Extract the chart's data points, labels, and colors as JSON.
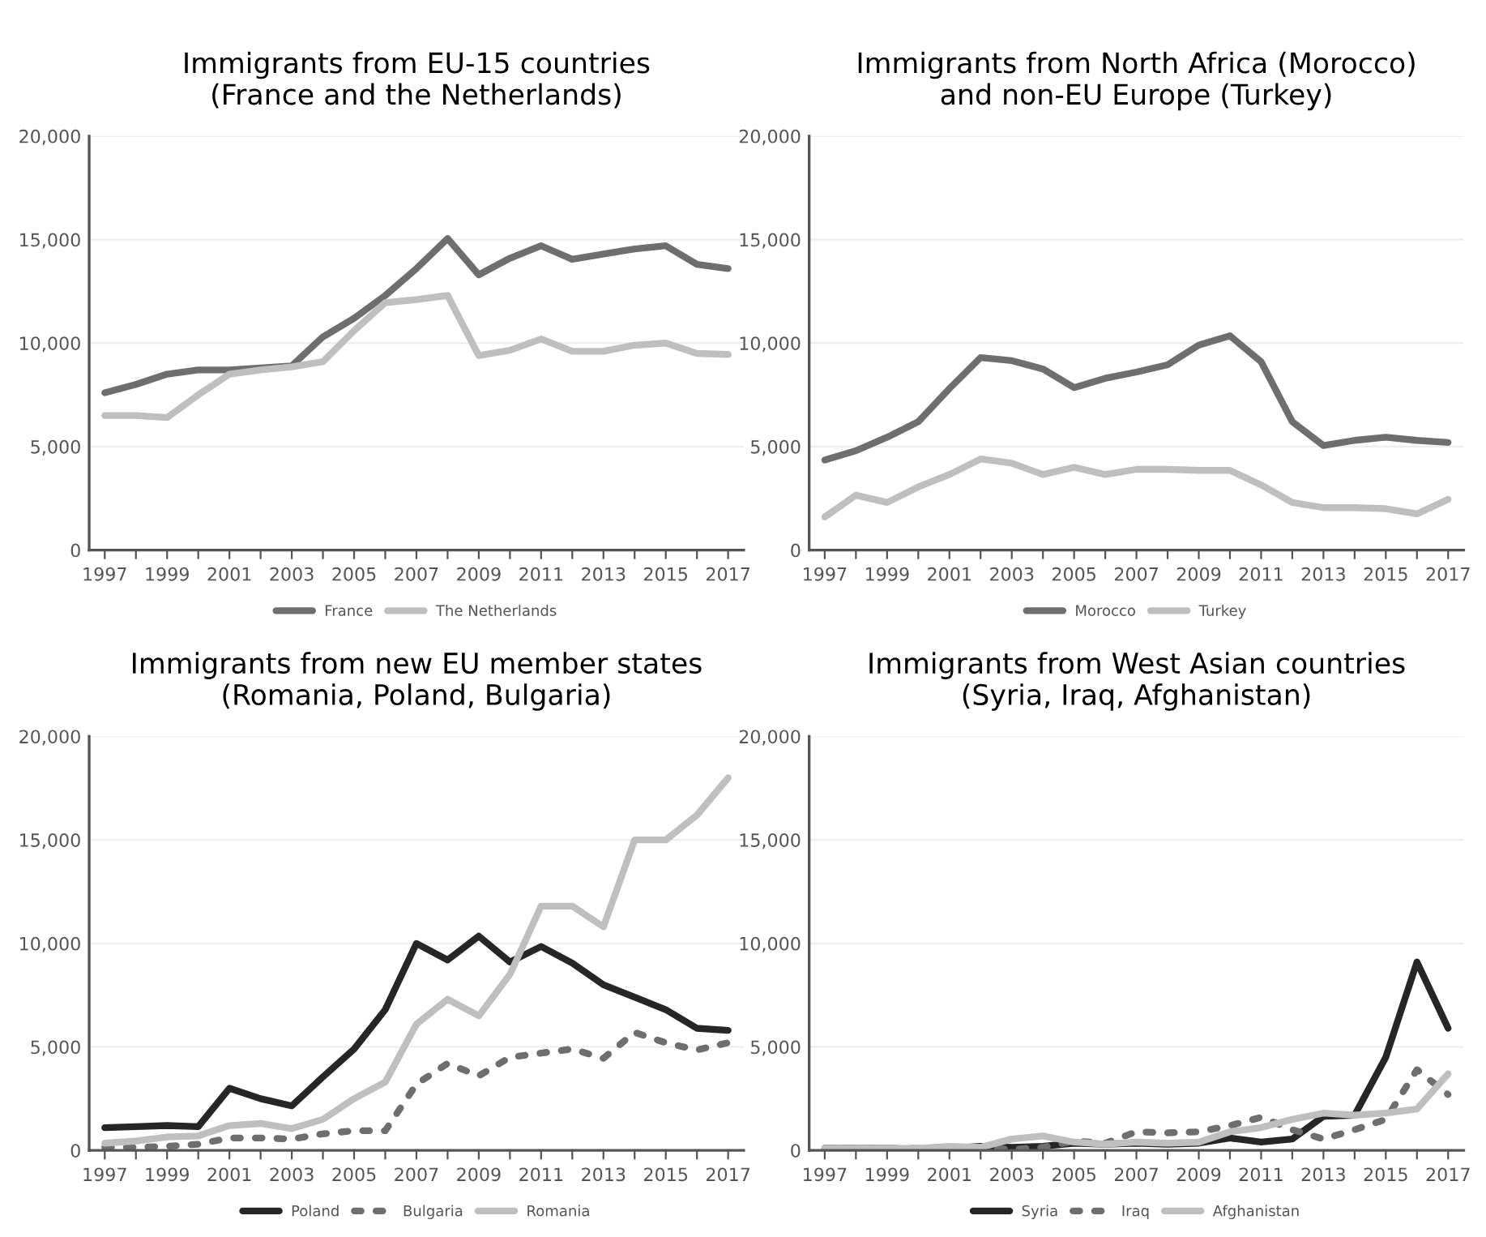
{
  "chart_data": [
    {
      "type": "line",
      "title": "Immigrants from EU-15 countries\n(France and the Netherlands)",
      "categories": [
        "1997",
        null,
        "1999",
        null,
        "2001",
        null,
        "2003",
        null,
        "2005",
        null,
        "2007",
        null,
        "2009",
        null,
        "2011",
        null,
        "2013",
        null,
        "2015",
        null,
        "2017"
      ],
      "ylim": [
        0,
        20000
      ],
      "yticks": [
        {
          "value": 0,
          "label": "0"
        },
        {
          "value": 5000,
          "label": "5,000"
        },
        {
          "value": 10000,
          "label": "10,000"
        },
        {
          "value": 15000,
          "label": "15,000"
        },
        {
          "value": 20000,
          "label": "20,000"
        }
      ],
      "grid": "y",
      "legend": "bottom",
      "line_style": "solid",
      "series": [
        {
          "name": "France",
          "color": "#6e6e6e",
          "values": [
            7600,
            8000,
            8500,
            8700,
            8700,
            8800,
            8900,
            10300,
            11200,
            12300,
            13600,
            15050,
            13300,
            14100,
            14700,
            14050,
            14300,
            14550,
            14700,
            13800,
            13600
          ]
        },
        {
          "name": "The Netherlands",
          "color": "#bfbfbf",
          "values": [
            6500,
            6500,
            6400,
            7500,
            8500,
            8700,
            8850,
            9100,
            10600,
            11950,
            12100,
            12300,
            9400,
            9650,
            10200,
            9600,
            9600,
            9900,
            10000,
            9500,
            9450
          ]
        }
      ]
    },
    {
      "type": "line",
      "title": "Immigrants from North Africa (Morocco)\nand non-EU Europe (Turkey)",
      "categories": [
        "1997",
        null,
        "1999",
        null,
        "2001",
        null,
        "2003",
        null,
        "2005",
        null,
        "2007",
        null,
        "2009",
        null,
        "2011",
        null,
        "2013",
        null,
        "2015",
        null,
        "2017"
      ],
      "ylim": [
        0,
        20000
      ],
      "yticks": [
        {
          "value": 0,
          "label": "0"
        },
        {
          "value": 5000,
          "label": "5,000"
        },
        {
          "value": 10000,
          "label": "10,000"
        },
        {
          "value": 15000,
          "label": "15,000"
        },
        {
          "value": 20000,
          "label": "20,000"
        }
      ],
      "grid": "y",
      "legend": "bottom",
      "line_style": "solid",
      "series": [
        {
          "name": "Morocco",
          "color": "#6e6e6e",
          "values": [
            4350,
            4800,
            5450,
            6200,
            7800,
            9300,
            9150,
            8750,
            7850,
            8300,
            8600,
            8950,
            9900,
            10350,
            9100,
            6200,
            5050,
            5300,
            5450,
            5300,
            5200
          ]
        },
        {
          "name": "Turkey",
          "color": "#bfbfbf",
          "values": [
            1600,
            2650,
            2300,
            3050,
            3650,
            4400,
            4200,
            3650,
            4000,
            3650,
            3900,
            3900,
            3850,
            3850,
            3150,
            2300,
            2050,
            2050,
            2000,
            1750,
            2450
          ]
        }
      ]
    },
    {
      "type": "line",
      "title": "Immigrants from new EU member states\n(Romania, Poland, Bulgaria)",
      "categories": [
        "1997",
        null,
        "1999",
        null,
        "2001",
        null,
        "2003",
        null,
        "2005",
        null,
        "2007",
        null,
        "2009",
        null,
        "2011",
        null,
        "2013",
        null,
        "2015",
        null,
        "2017"
      ],
      "ylim": [
        0,
        20000
      ],
      "yticks": [
        {
          "value": 0,
          "label": "0"
        },
        {
          "value": 5000,
          "label": "5,000"
        },
        {
          "value": 10000,
          "label": "10,000"
        },
        {
          "value": 15000,
          "label": "15,000"
        },
        {
          "value": 20000,
          "label": "20,000"
        }
      ],
      "grid": "y",
      "legend": "bottom",
      "line_style": "solid",
      "series": [
        {
          "name": "Poland",
          "color": "#262626",
          "values": [
            1100,
            1150,
            1200,
            1150,
            3000,
            2500,
            2150,
            3550,
            4900,
            6800,
            10000,
            9200,
            10350,
            9100,
            9850,
            9050,
            8000,
            7400,
            6800,
            5900,
            5800
          ]
        },
        {
          "name": "Bulgaria",
          "color": "#6e6e6e",
          "line_style": "dotted",
          "values": [
            150,
            150,
            200,
            300,
            600,
            600,
            550,
            800,
            950,
            950,
            3200,
            4200,
            3600,
            4500,
            4700,
            4900,
            4450,
            5700,
            5200,
            4850,
            5200
          ]
        },
        {
          "name": "Romania",
          "color": "#bfbfbf",
          "values": [
            350,
            450,
            650,
            700,
            1200,
            1300,
            1050,
            1500,
            2500,
            3300,
            6100,
            7300,
            6500,
            8500,
            11800,
            11800,
            10800,
            15000,
            15000,
            16200,
            18000
          ]
        }
      ]
    },
    {
      "type": "line",
      "title": "Immigrants from West Asian countries\n(Syria, Iraq, Afghanistan)",
      "categories": [
        "1997",
        null,
        "1999",
        null,
        "2001",
        null,
        "2003",
        null,
        "2005",
        null,
        "2007",
        null,
        "2009",
        null,
        "2011",
        null,
        "2013",
        null,
        "2015",
        null,
        "2017"
      ],
      "ylim": [
        0,
        20000
      ],
      "yticks": [
        {
          "value": 0,
          "label": "0"
        },
        {
          "value": 5000,
          "label": "5,000"
        },
        {
          "value": 10000,
          "label": "10,000"
        },
        {
          "value": 15000,
          "label": "15,000"
        },
        {
          "value": 20000,
          "label": "20,000"
        }
      ],
      "grid": "y",
      "legend": "bottom",
      "line_style": "solid",
      "series": [
        {
          "name": "Syria",
          "color": "#262626",
          "values": [
            100,
            100,
            100,
            50,
            100,
            200,
            150,
            200,
            350,
            300,
            350,
            300,
            350,
            600,
            400,
            550,
            1650,
            1700,
            4500,
            9100,
            5900
          ]
        },
        {
          "name": "Iraq",
          "color": "#6e6e6e",
          "line_style": "dotted",
          "values": [
            100,
            100,
            100,
            100,
            100,
            150,
            50,
            150,
            450,
            350,
            900,
            850,
            900,
            1200,
            1600,
            1000,
            550,
            1000,
            1500,
            3900,
            2700
          ]
        },
        {
          "name": "Afghanistan",
          "color": "#bfbfbf",
          "values": [
            100,
            100,
            100,
            100,
            200,
            150,
            550,
            700,
            400,
            300,
            400,
            350,
            400,
            900,
            1100,
            1500,
            1800,
            1700,
            1800,
            2000,
            3700
          ]
        }
      ]
    }
  ]
}
